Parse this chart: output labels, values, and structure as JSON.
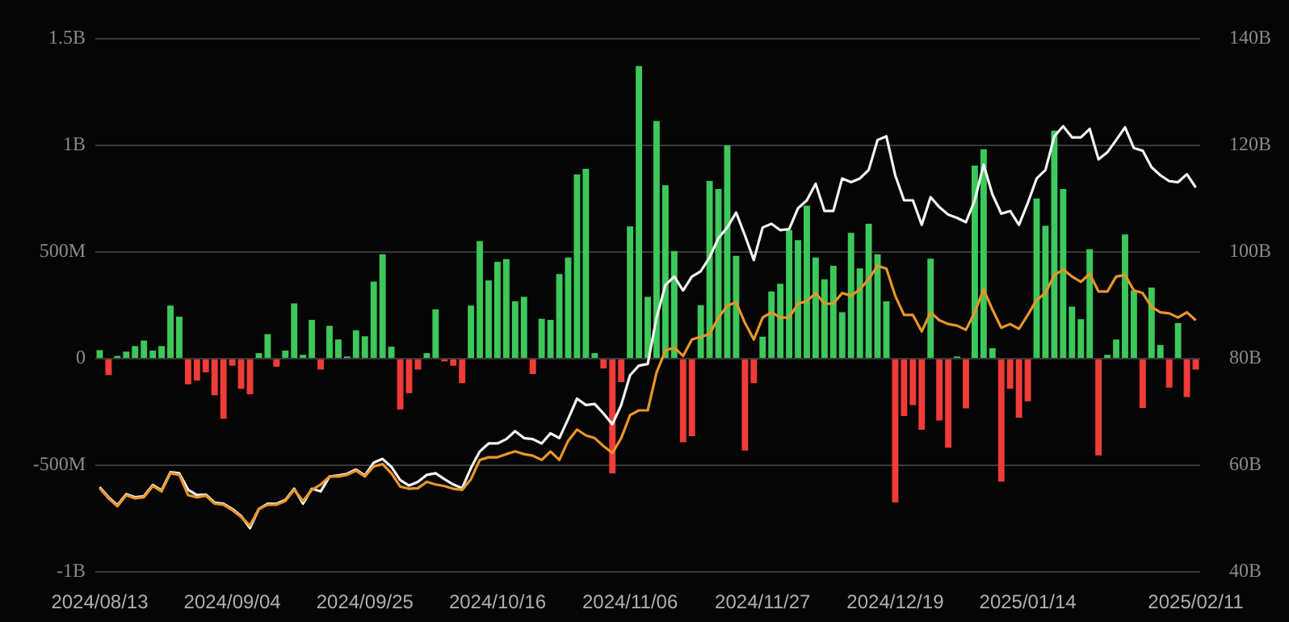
{
  "chart_data": {
    "type": "bar",
    "categories": [
      "2024/08/13",
      null,
      null,
      null,
      null,
      null,
      null,
      null,
      null,
      null,
      null,
      null,
      null,
      null,
      null,
      "2024/09/04",
      null,
      null,
      null,
      null,
      null,
      null,
      null,
      null,
      null,
      null,
      null,
      null,
      null,
      null,
      "2024/09/25",
      null,
      null,
      null,
      null,
      null,
      null,
      null,
      null,
      null,
      null,
      null,
      null,
      null,
      null,
      "2024/10/16",
      null,
      null,
      null,
      null,
      null,
      null,
      null,
      null,
      null,
      null,
      null,
      null,
      null,
      null,
      "2024/11/06",
      null,
      null,
      null,
      null,
      null,
      null,
      null,
      null,
      null,
      null,
      null,
      null,
      null,
      null,
      "2024/11/27",
      null,
      null,
      null,
      null,
      null,
      null,
      null,
      null,
      null,
      null,
      null,
      null,
      null,
      null,
      "2024/12/19",
      null,
      null,
      null,
      null,
      null,
      null,
      null,
      null,
      null,
      null,
      null,
      null,
      null,
      null,
      "2025/01/14",
      null,
      null,
      null,
      null,
      null,
      null,
      null,
      null,
      null,
      null,
      null,
      null,
      null,
      null,
      null,
      null,
      null,
      null,
      "2025/02/11"
    ],
    "series": [
      {
        "values": [
          40000000,
          -77000000,
          13000000,
          33000000,
          59000000,
          85000000,
          38000000,
          59000000,
          249000000,
          197000000,
          -120000000,
          -103000000,
          -64000000,
          -172000000,
          -282000000,
          -33000000,
          -141000000,
          -167000000,
          26000000,
          115000000,
          -38000000,
          38000000,
          259000000,
          18000000,
          182000000,
          -51000000,
          154000000,
          90000000,
          10000000,
          133000000,
          105000000,
          362000000,
          490000000,
          56000000,
          -238000000,
          -162000000,
          -51000000,
          26000000,
          231000000,
          -13000000,
          -33000000,
          -115000000,
          249000000,
          551000000,
          367000000,
          454000000,
          467000000,
          269000000,
          290000000,
          -72000000,
          187000000,
          182000000,
          397000000,
          474000000,
          864000000,
          890000000,
          26000000,
          -46000000,
          -538000000,
          -110000000,
          620000000,
          1372000000,
          290000000,
          1115000000,
          813000000,
          505000000,
          -392000000,
          -364000000,
          251000000,
          833000000,
          795000000,
          1000000000,
          482000000,
          -431000000,
          -115000000,
          103000000,
          315000000,
          351000000,
          603000000,
          556000000,
          718000000,
          474000000,
          372000000,
          436000000,
          218000000,
          590000000,
          423000000,
          633000000,
          490000000,
          269000000,
          -674000000,
          -269000000,
          -218000000,
          -333000000,
          469000000,
          -290000000,
          -418000000,
          10000000,
          -233000000,
          905000000,
          982000000,
          49000000,
          -577000000,
          -141000000,
          -277000000,
          -200000000,
          751000000,
          623000000,
          1069000000,
          795000000,
          244000000,
          185000000,
          513000000,
          -454000000,
          18000000,
          90000000,
          582000000,
          320000000,
          -231000000,
          333000000,
          64000000,
          -136000000,
          167000000,
          -180000000,
          -51000000
        ],
        "colors": [
          "#3cc85a",
          "#f03c37",
          "#3cc85a",
          "#3cc85a",
          "#3cc85a",
          "#3cc85a",
          "#3cc85a",
          "#3cc85a",
          "#3cc85a",
          "#3cc85a",
          "#f03c37",
          "#f03c37",
          "#f03c37",
          "#f03c37",
          "#f03c37",
          "#f03c37",
          "#f03c37",
          "#f03c37",
          "#3cc85a",
          "#3cc85a",
          "#f03c37",
          "#3cc85a",
          "#3cc85a",
          "#3cc85a",
          "#3cc85a",
          "#f03c37",
          "#3cc85a",
          "#3cc85a",
          "#3cc85a",
          "#3cc85a",
          "#3cc85a",
          "#3cc85a",
          "#3cc85a",
          "#3cc85a",
          "#f03c37",
          "#f03c37",
          "#f03c37",
          "#3cc85a",
          "#3cc85a",
          "#f03c37",
          "#f03c37",
          "#f03c37",
          "#3cc85a",
          "#3cc85a",
          "#3cc85a",
          "#3cc85a",
          "#3cc85a",
          "#3cc85a",
          "#3cc85a",
          "#f03c37",
          "#3cc85a",
          "#3cc85a",
          "#3cc85a",
          "#3cc85a",
          "#3cc85a",
          "#3cc85a",
          "#3cc85a",
          "#f03c37",
          "#f03c37",
          "#f03c37",
          "#3cc85a",
          "#3cc85a",
          "#3cc85a",
          "#3cc85a",
          "#3cc85a",
          "#3cc85a",
          "#f03c37",
          "#f03c37",
          "#3cc85a",
          "#3cc85a",
          "#3cc85a",
          "#3cc85a",
          "#3cc85a",
          "#f03c37",
          "#f03c37",
          "#3cc85a",
          "#3cc85a",
          "#3cc85a",
          "#3cc85a",
          "#3cc85a",
          "#3cc85a",
          "#3cc85a",
          "#3cc85a",
          "#3cc85a",
          "#3cc85a",
          "#3cc85a",
          "#3cc85a",
          "#3cc85a",
          "#3cc85a",
          "#3cc85a",
          "#f03c37",
          "#f03c37",
          "#f03c37",
          "#f03c37",
          "#3cc85a",
          "#f03c37",
          "#f03c37",
          "#3cc85a",
          "#f03c37",
          "#3cc85a",
          "#3cc85a",
          "#3cc85a",
          "#f03c37",
          "#f03c37",
          "#f03c37",
          "#f03c37",
          "#3cc85a",
          "#3cc85a",
          "#3cc85a",
          "#3cc85a",
          "#3cc85a",
          "#3cc85a",
          "#3cc85a",
          "#f03c37",
          "#3cc85a",
          "#3cc85a",
          "#3cc85a",
          "#3cc85a",
          "#f03c37",
          "#3cc85a",
          "#3cc85a",
          "#f03c37",
          "#3cc85a",
          "#f03c37",
          "#f03c37"
        ]
      },
      {
        "type": "line",
        "axis": "y2",
        "color": "#f2f2f2",
        "values": [
          55.9,
          54.0,
          52.5,
          54.6,
          54.0,
          54.2,
          56.3,
          55.3,
          58.7,
          58.5,
          55.4,
          54.4,
          54.5,
          53.0,
          52.8,
          51.8,
          50.5,
          48.2,
          51.8,
          52.8,
          52.8,
          53.5,
          55.6,
          52.8,
          55.6,
          55.1,
          57.9,
          58.1,
          58.4,
          59.2,
          58.1,
          60.5,
          61.2,
          59.7,
          57.2,
          56.2,
          56.9,
          58.2,
          58.5,
          57.4,
          56.4,
          55.7,
          59.5,
          62.6,
          64.1,
          64.1,
          64.9,
          66.4,
          65.1,
          64.9,
          64.1,
          66.0,
          65.1,
          68.7,
          72.5,
          71.3,
          71.5,
          69.7,
          67.7,
          71.3,
          76.9,
          78.7,
          79.0,
          87.7,
          93.8,
          95.4,
          92.8,
          95.4,
          96.4,
          99.0,
          102.6,
          104.6,
          107.4,
          103.1,
          98.5,
          104.6,
          105.3,
          104.1,
          104.3,
          108.2,
          109.7,
          112.8,
          107.7,
          107.7,
          113.8,
          113.1,
          113.8,
          115.4,
          121.0,
          121.7,
          114.4,
          109.7,
          109.7,
          105.1,
          110.3,
          108.4,
          107.0,
          106.4,
          105.6,
          109.7,
          116.4,
          110.8,
          107.2,
          107.7,
          105.1,
          109.2,
          113.8,
          115.4,
          121.7,
          123.6,
          121.5,
          121.5,
          123.1,
          117.4,
          118.7,
          121.0,
          123.4,
          119.5,
          119.0,
          115.9,
          114.4,
          113.3,
          113.1,
          114.6,
          112.1
        ]
      },
      {
        "type": "line",
        "axis": "y2",
        "color": "#e8962a",
        "values": [
          55.7,
          53.8,
          52.3,
          54.4,
          53.8,
          54.0,
          56.1,
          55.1,
          58.5,
          58.2,
          54.4,
          54.0,
          54.3,
          52.8,
          52.6,
          51.6,
          50.3,
          48.7,
          51.8,
          52.6,
          52.6,
          53.3,
          55.4,
          53.3,
          55.4,
          56.4,
          57.9,
          57.9,
          58.2,
          59.0,
          57.9,
          59.8,
          60.2,
          58.5,
          56.0,
          55.6,
          55.7,
          56.9,
          56.4,
          56.1,
          55.6,
          55.4,
          57.4,
          61.0,
          61.5,
          61.5,
          62.1,
          62.6,
          62.1,
          61.8,
          61.0,
          62.6,
          61.0,
          64.6,
          66.7,
          65.6,
          65.1,
          63.6,
          62.3,
          65.1,
          69.4,
          70.3,
          70.3,
          77.4,
          81.5,
          82.1,
          80.5,
          83.6,
          84.1,
          84.6,
          87.7,
          89.9,
          90.6,
          86.7,
          83.6,
          87.7,
          88.7,
          87.7,
          87.7,
          90.3,
          90.8,
          92.3,
          90.3,
          90.3,
          92.3,
          91.8,
          93.0,
          94.9,
          97.4,
          96.9,
          91.8,
          88.2,
          88.2,
          85.1,
          88.7,
          87.2,
          86.5,
          86.2,
          85.4,
          88.7,
          93.0,
          89.2,
          85.8,
          86.5,
          85.6,
          88.2,
          91.0,
          92.3,
          95.7,
          96.7,
          95.4,
          94.4,
          95.9,
          92.6,
          92.6,
          95.4,
          95.7,
          92.8,
          92.3,
          89.7,
          88.7,
          88.5,
          87.7,
          88.7,
          87.2
        ]
      }
    ],
    "ylim": [
      -1000000000,
      1500000000
    ],
    "yticks": [
      {
        "value": -1000000000,
        "label": "-1B"
      },
      {
        "value": -500000000,
        "label": "-500M"
      },
      0,
      {
        "value": 500000000,
        "label": "500M"
      },
      {
        "value": 1000000000,
        "label": "1B"
      },
      {
        "value": 1500000000,
        "label": "1.5B"
      }
    ],
    "y2lim": [
      40,
      140
    ],
    "y2ticks": [
      {
        "value": 40,
        "label": "40B"
      },
      {
        "value": 60,
        "label": "60B"
      },
      {
        "value": 80,
        "label": "80B"
      },
      {
        "value": 100,
        "label": "100B"
      },
      {
        "value": 120,
        "label": "120B"
      },
      {
        "value": 140,
        "label": "140B"
      }
    ],
    "grid": "y",
    "marker": "none",
    "line_style": "solid"
  }
}
